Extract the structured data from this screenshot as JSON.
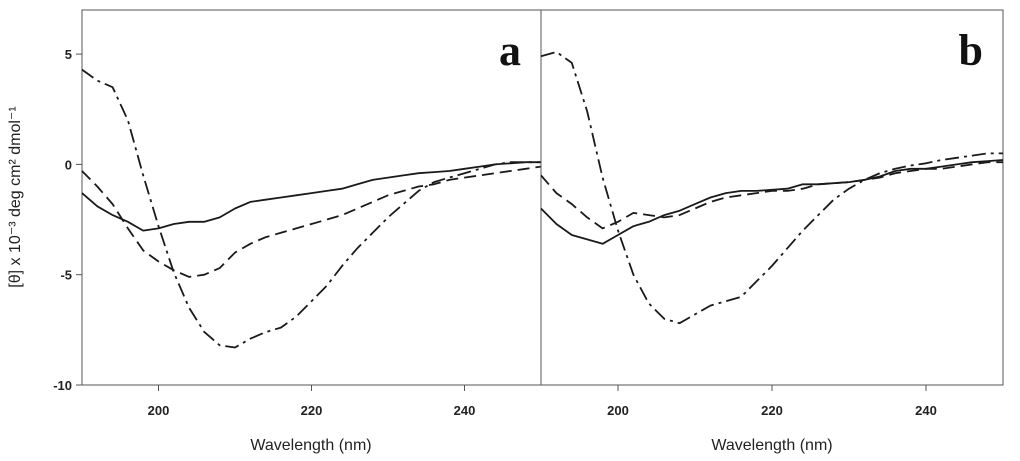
{
  "chart_data": [
    {
      "type": "line",
      "panel_label": "a",
      "xlabel": "Wavelength (nm)",
      "ylabel": "[θ] x 10⁻³ deg cm² dmol⁻¹",
      "xlim": [
        190,
        250
      ],
      "ylim": [
        -10,
        7
      ],
      "xticks": [
        200,
        220,
        240
      ],
      "yticks": [
        5,
        0,
        -5,
        -10
      ],
      "grid": false,
      "series": [
        {
          "style": "solid",
          "x": [
            190,
            192,
            194,
            196,
            198,
            200,
            202,
            204,
            206,
            208,
            210,
            212,
            214,
            216,
            218,
            220,
            222,
            224,
            226,
            228,
            230,
            232,
            234,
            236,
            238,
            240,
            242,
            244,
            246,
            248,
            250
          ],
          "y": [
            -1.3,
            -1.9,
            -2.3,
            -2.6,
            -3.0,
            -2.9,
            -2.7,
            -2.6,
            -2.6,
            -2.4,
            -2.0,
            -1.7,
            -1.6,
            -1.5,
            -1.4,
            -1.3,
            -1.2,
            -1.1,
            -0.9,
            -0.7,
            -0.6,
            -0.5,
            -0.4,
            -0.35,
            -0.3,
            -0.2,
            -0.1,
            0.0,
            0.05,
            0.1,
            0.1
          ]
        },
        {
          "style": "dashed",
          "x": [
            190,
            192,
            194,
            196,
            198,
            200,
            202,
            204,
            206,
            208,
            210,
            212,
            214,
            216,
            218,
            220,
            222,
            224,
            226,
            228,
            230,
            232,
            234,
            236,
            238,
            240,
            242,
            244,
            246,
            248,
            250
          ],
          "y": [
            -0.3,
            -1.0,
            -1.8,
            -2.9,
            -3.9,
            -4.4,
            -4.8,
            -5.1,
            -5.0,
            -4.7,
            -4.0,
            -3.6,
            -3.3,
            -3.1,
            -2.9,
            -2.7,
            -2.5,
            -2.3,
            -2.0,
            -1.7,
            -1.4,
            -1.2,
            -1.0,
            -0.9,
            -0.7,
            -0.6,
            -0.5,
            -0.4,
            -0.3,
            -0.2,
            -0.1
          ]
        },
        {
          "style": "dash-dot",
          "x": [
            190,
            192,
            194,
            196,
            198,
            200,
            202,
            204,
            206,
            208,
            210,
            212,
            214,
            216,
            218,
            220,
            222,
            224,
            226,
            228,
            230,
            232,
            234,
            236,
            238,
            240,
            242,
            244,
            246,
            248,
            250
          ],
          "y": [
            4.3,
            3.8,
            3.5,
            2.0,
            -0.5,
            -2.8,
            -4.9,
            -6.5,
            -7.6,
            -8.2,
            -8.3,
            -7.9,
            -7.6,
            -7.4,
            -6.9,
            -6.2,
            -5.5,
            -4.6,
            -3.8,
            -3.1,
            -2.4,
            -1.8,
            -1.2,
            -0.8,
            -0.6,
            -0.4,
            -0.2,
            0.0,
            0.1,
            0.1,
            0.1
          ]
        }
      ]
    },
    {
      "type": "line",
      "panel_label": "b",
      "xlabel": "Wavelength (nm)",
      "xlim": [
        190,
        250
      ],
      "ylim": [
        -10,
        7
      ],
      "xticks": [
        200,
        220,
        240
      ],
      "grid": false,
      "series": [
        {
          "style": "solid",
          "x": [
            190,
            192,
            194,
            196,
            198,
            200,
            202,
            204,
            206,
            208,
            210,
            212,
            214,
            216,
            218,
            220,
            222,
            224,
            226,
            228,
            230,
            232,
            234,
            236,
            238,
            240,
            242,
            244,
            246,
            248,
            250
          ],
          "y": [
            -2.0,
            -2.7,
            -3.2,
            -3.4,
            -3.6,
            -3.2,
            -2.8,
            -2.6,
            -2.3,
            -2.1,
            -1.8,
            -1.5,
            -1.3,
            -1.2,
            -1.2,
            -1.15,
            -1.1,
            -0.9,
            -0.9,
            -0.85,
            -0.8,
            -0.7,
            -0.55,
            -0.3,
            -0.2,
            -0.2,
            -0.1,
            0.0,
            0.1,
            0.15,
            0.2
          ]
        },
        {
          "style": "dashed",
          "x": [
            190,
            192,
            194,
            196,
            198,
            200,
            202,
            204,
            206,
            208,
            210,
            212,
            214,
            216,
            218,
            220,
            222,
            224,
            226,
            228,
            230,
            232,
            234,
            236,
            238,
            240,
            242,
            244,
            246,
            248,
            250
          ],
          "y": [
            -0.5,
            -1.3,
            -1.8,
            -2.4,
            -2.9,
            -2.6,
            -2.2,
            -2.3,
            -2.4,
            -2.3,
            -2.0,
            -1.7,
            -1.5,
            -1.4,
            -1.3,
            -1.2,
            -1.2,
            -1.1,
            -0.9,
            -0.85,
            -0.8,
            -0.7,
            -0.6,
            -0.4,
            -0.3,
            -0.2,
            -0.2,
            -0.1,
            0.0,
            0.1,
            0.1
          ]
        },
        {
          "style": "dash-dot",
          "x": [
            190,
            192,
            194,
            196,
            198,
            200,
            202,
            204,
            206,
            208,
            210,
            212,
            214,
            216,
            218,
            220,
            222,
            224,
            226,
            228,
            230,
            232,
            234,
            236,
            238,
            240,
            242,
            244,
            246,
            248,
            250
          ],
          "y": [
            4.9,
            5.1,
            4.6,
            2.4,
            -0.6,
            -3.0,
            -5.0,
            -6.3,
            -7.0,
            -7.2,
            -6.8,
            -6.4,
            -6.2,
            -6.0,
            -5.3,
            -4.6,
            -3.8,
            -3.0,
            -2.3,
            -1.6,
            -1.1,
            -0.7,
            -0.4,
            -0.2,
            -0.05,
            0.05,
            0.2,
            0.3,
            0.4,
            0.5,
            0.5
          ]
        }
      ]
    }
  ]
}
